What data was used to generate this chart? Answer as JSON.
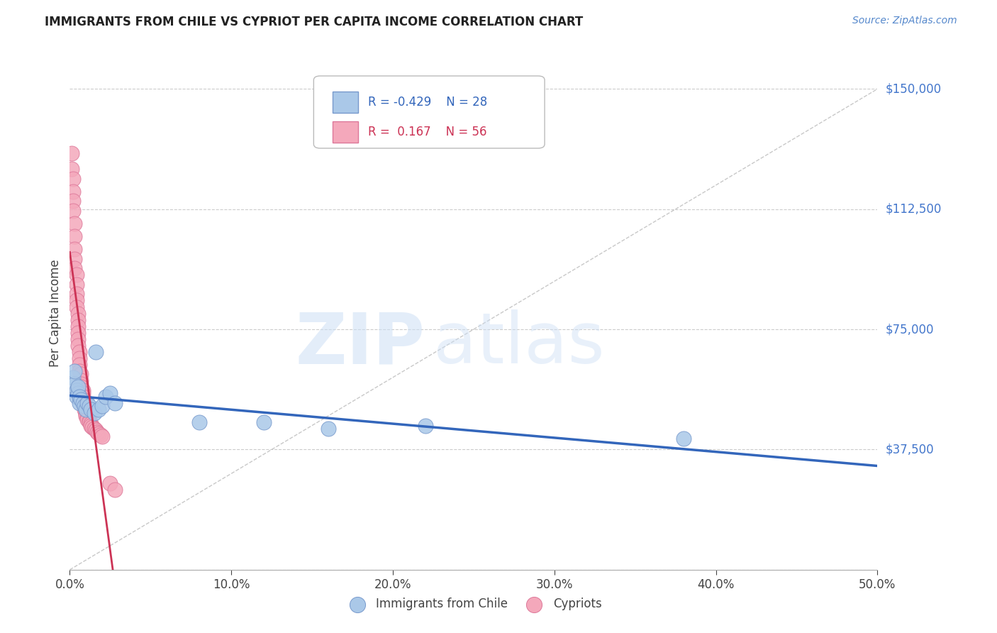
{
  "title": "IMMIGRANTS FROM CHILE VS CYPRIOT PER CAPITA INCOME CORRELATION CHART",
  "source": "Source: ZipAtlas.com",
  "ylabel": "Per Capita Income",
  "ylim": [
    0,
    160000
  ],
  "xlim": [
    0.0,
    0.5
  ],
  "legend_blue_r": "-0.429",
  "legend_blue_n": "28",
  "legend_pink_r": " 0.167",
  "legend_pink_n": "56",
  "legend_blue_label": "Immigrants from Chile",
  "legend_pink_label": "Cypriots",
  "blue_color": "#aac8e8",
  "blue_edge": "#7799cc",
  "pink_color": "#f4a8bb",
  "pink_edge": "#dd7799",
  "blue_line_color": "#3366bb",
  "pink_line_color": "#cc3355",
  "diag_color": "#bbbbbb",
  "grid_color": "#cccccc",
  "ytick_vals": [
    0,
    37500,
    75000,
    112500,
    150000
  ],
  "ytick_labels": [
    "",
    "$37,500",
    "$75,000",
    "$112,500",
    "$150,000"
  ],
  "blue_scatter_x": [
    0.002,
    0.003,
    0.003,
    0.004,
    0.004,
    0.005,
    0.005,
    0.006,
    0.006,
    0.007,
    0.008,
    0.009,
    0.01,
    0.011,
    0.012,
    0.013,
    0.015,
    0.016,
    0.018,
    0.02,
    0.022,
    0.025,
    0.028,
    0.08,
    0.12,
    0.16,
    0.22,
    0.38
  ],
  "blue_scatter_y": [
    60000,
    58000,
    62000,
    56000,
    54000,
    55000,
    57000,
    52000,
    54000,
    53000,
    52000,
    51000,
    50000,
    52000,
    51000,
    50000,
    49000,
    68000,
    50000,
    51000,
    54000,
    55000,
    52000,
    46000,
    46000,
    44000,
    45000,
    41000
  ],
  "pink_scatter_x": [
    0.001,
    0.001,
    0.002,
    0.002,
    0.002,
    0.002,
    0.003,
    0.003,
    0.003,
    0.003,
    0.003,
    0.004,
    0.004,
    0.004,
    0.004,
    0.004,
    0.005,
    0.005,
    0.005,
    0.005,
    0.005,
    0.005,
    0.006,
    0.006,
    0.006,
    0.006,
    0.007,
    0.007,
    0.007,
    0.007,
    0.008,
    0.008,
    0.008,
    0.008,
    0.009,
    0.009,
    0.009,
    0.01,
    0.01,
    0.01,
    0.01,
    0.011,
    0.011,
    0.012,
    0.012,
    0.013,
    0.013,
    0.014,
    0.015,
    0.016,
    0.017,
    0.018,
    0.019,
    0.02,
    0.025,
    0.028
  ],
  "pink_scatter_y": [
    130000,
    125000,
    122000,
    118000,
    115000,
    112000,
    108000,
    104000,
    100000,
    97000,
    94000,
    92000,
    89000,
    86000,
    84000,
    82000,
    80000,
    78000,
    76000,
    74000,
    72000,
    70000,
    68000,
    66000,
    64000,
    62000,
    61000,
    59000,
    58000,
    57000,
    56000,
    55000,
    54000,
    53000,
    52000,
    51000,
    50000,
    50000,
    49000,
    48500,
    48000,
    47500,
    47000,
    46500,
    46000,
    45500,
    45000,
    44500,
    44000,
    43500,
    43000,
    42500,
    42000,
    41500,
    27000,
    25000
  ]
}
